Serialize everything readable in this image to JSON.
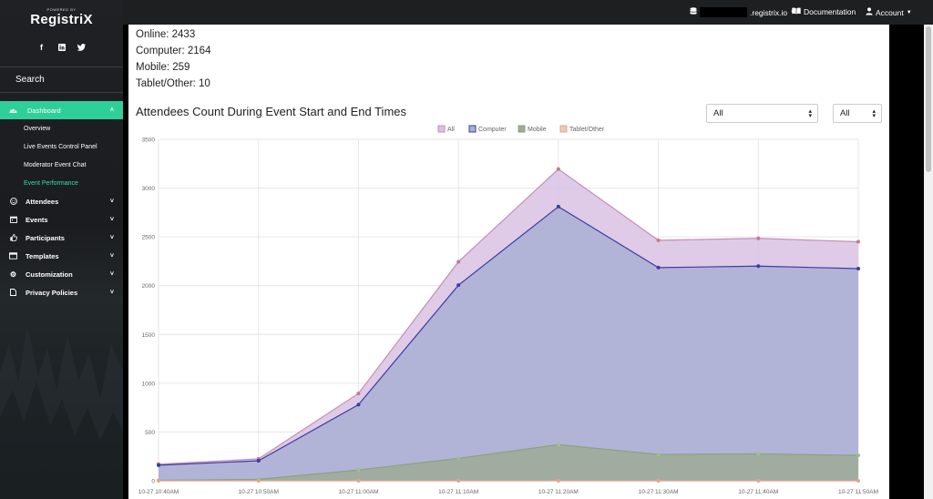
{
  "brand": {
    "powered_by": "POWERED BY",
    "name": "RegistriX"
  },
  "sidebar": {
    "search_label": "Search",
    "nav": [
      {
        "label": "Dashboard",
        "icon": "dashboard-icon",
        "expanded": true,
        "children": [
          "Overview",
          "Live Events Control Panel",
          "Moderator Event Chat",
          "Event Performance"
        ]
      },
      {
        "label": "Attendees",
        "icon": "smile-icon"
      },
      {
        "label": "Events",
        "icon": "calendar-icon"
      },
      {
        "label": "Participants",
        "icon": "thumbs-up-icon"
      },
      {
        "label": "Templates",
        "icon": "template-icon"
      },
      {
        "label": "Customization",
        "icon": "gear-icon"
      },
      {
        "label": "Privacy Policies",
        "icon": "document-icon"
      }
    ]
  },
  "topbar": {
    "domain": ".registrix.io",
    "documentation": "Documentation",
    "account": "Account"
  },
  "stats": {
    "online": "Online: 2433",
    "computer": "Computer: 2164",
    "mobile": "Mobile: 259",
    "tablet": "Tablet/Other: 10"
  },
  "chart_section": {
    "title": "Attendees Count During Event Start and End Times",
    "filter1": "All",
    "filter2": "All"
  },
  "chart_data": {
    "type": "area",
    "categories": [
      "10-27 10:40AM",
      "10-27 10:50AM",
      "10-27 11:00AM",
      "10-27 11:10AM",
      "10-27 11:20AM",
      "10-27 11:30AM",
      "10-27 11:40AM",
      "10-27 11:50AM"
    ],
    "ylim": [
      0,
      3500
    ],
    "yticks": [
      0,
      500,
      1000,
      1500,
      2000,
      2500,
      3000,
      3500
    ],
    "grid": true,
    "legend_position": "top-center",
    "series": [
      {
        "name": "All",
        "values": [
          170,
          225,
          895,
          2245,
          3195,
          2465,
          2485,
          2450
        ],
        "fill": "#d9c2e3",
        "stroke": "#c48fb3",
        "point": "#c2798e"
      },
      {
        "name": "Computer",
        "values": [
          160,
          205,
          780,
          2005,
          2810,
          2185,
          2200,
          2175
        ],
        "fill": "#a9b0d2",
        "stroke": "#3b3da0",
        "point": "#3b3da0"
      },
      {
        "name": "Mobile",
        "values": [
          5,
          15,
          110,
          230,
          370,
          270,
          275,
          260
        ],
        "fill": "#9faa97",
        "stroke": "#8ba27e",
        "point": "#9fbf8a"
      },
      {
        "name": "Tablet/Other",
        "values": [
          0,
          0,
          0,
          0,
          0,
          0,
          0,
          0
        ],
        "fill": "#f0c8b8",
        "stroke": "#e3a58c",
        "point": "#e3a58c"
      }
    ]
  }
}
